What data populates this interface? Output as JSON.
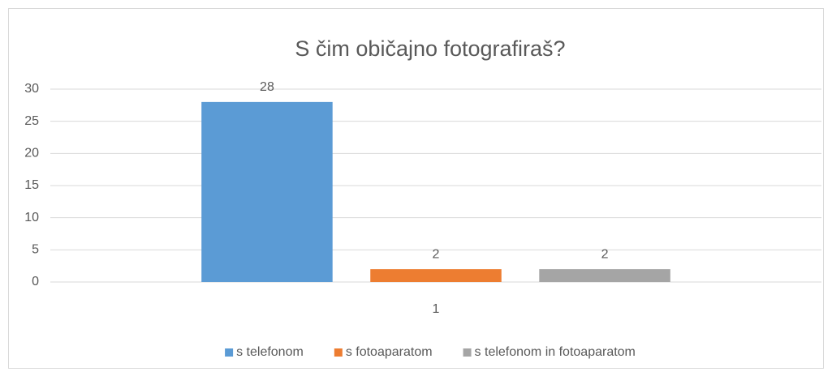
{
  "chart_data": {
    "type": "bar",
    "title": "S čim običajno fotografiraš?",
    "categories": [
      "1"
    ],
    "series": [
      {
        "name": "s telefonom",
        "color": "#5b9bd5",
        "values": [
          28
        ]
      },
      {
        "name": "s fotoaparatom",
        "color": "#ed7d31",
        "values": [
          2
        ]
      },
      {
        "name": "s telefonom in fotoaparatom",
        "color": "#a5a5a5",
        "values": [
          2
        ]
      }
    ],
    "ylim": [
      0,
      30
    ],
    "yticks": [
      0,
      5,
      10,
      15,
      20,
      25,
      30
    ],
    "grid": true,
    "legend": "bottom",
    "data_labels": true
  }
}
